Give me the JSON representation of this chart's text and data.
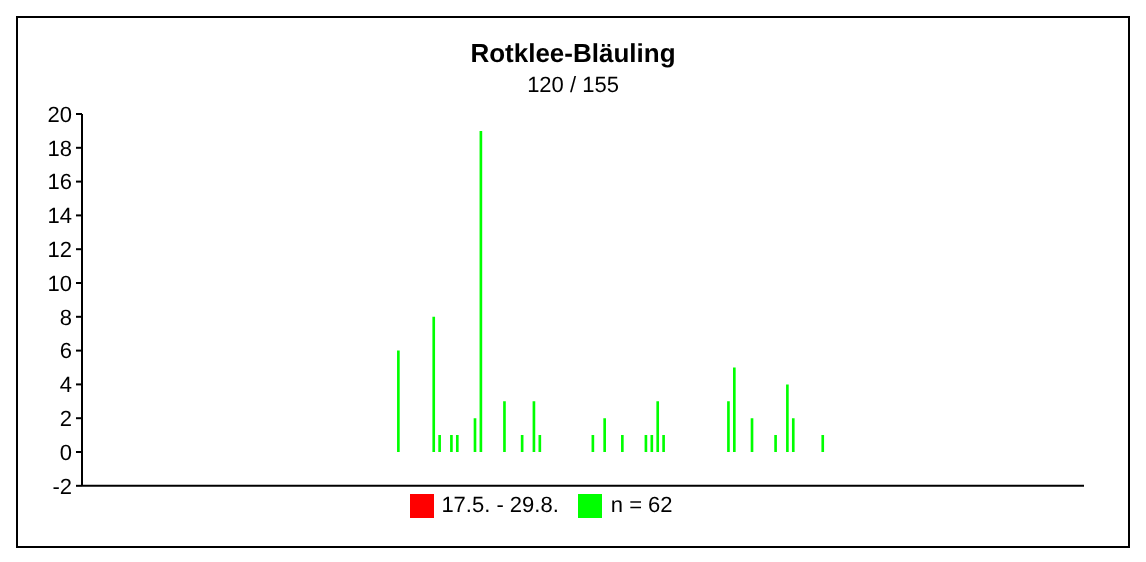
{
  "chart_data": {
    "type": "bar",
    "title": "Rotklee-Bläuling",
    "subtitle": "120 / 155",
    "categories": [
      null,
      null,
      null,
      null,
      null,
      null,
      null,
      null,
      null,
      null,
      null,
      null,
      null,
      null,
      null,
      null,
      null,
      null,
      null,
      null,
      null,
      null,
      null,
      null,
      null,
      null,
      null,
      null,
      null,
      null,
      null,
      null,
      null,
      null,
      null,
      null,
      null,
      null,
      null,
      null,
      null,
      null,
      null,
      null,
      null,
      null,
      null,
      null,
      null,
      null,
      null,
      null,
      null,
      null,
      null,
      null,
      null,
      null,
      null,
      null,
      null,
      null,
      null,
      null,
      null,
      null,
      null,
      null,
      null,
      null,
      null,
      null,
      null,
      null,
      null,
      null,
      null,
      null,
      null,
      null,
      null,
      null,
      null,
      null,
      null,
      null,
      null,
      null,
      null,
      null,
      null,
      null,
      null,
      null,
      null,
      null,
      null,
      null,
      null,
      null,
      null,
      null,
      null,
      null,
      null,
      null,
      null,
      null,
      null,
      null,
      null,
      null,
      null,
      null,
      null,
      null,
      null,
      null,
      null,
      null,
      null,
      null,
      null,
      null,
      null,
      null,
      null,
      null,
      null,
      null,
      null,
      null,
      null,
      null,
      null,
      null,
      null,
      null,
      null,
      null,
      null,
      null,
      null,
      null,
      null,
      null,
      null,
      null,
      null,
      null,
      null,
      null,
      null,
      null,
      null,
      null,
      null,
      null,
      null,
      null,
      null,
      null,
      null,
      null,
      null,
      null,
      null,
      null,
      null,
      null
    ],
    "series": [
      {
        "name": "17.5. - 29.8.",
        "color": "#ff0000",
        "values": [
          null,
          null,
          null,
          null,
          null,
          null,
          null,
          null,
          null,
          null,
          null,
          null,
          null,
          null,
          null,
          null,
          null,
          null,
          null,
          null,
          null,
          null,
          null,
          null,
          null,
          null,
          null,
          null,
          null,
          null,
          null,
          null,
          null,
          null,
          null,
          null,
          null,
          null,
          null,
          null,
          null,
          null,
          null,
          null,
          null,
          null,
          null,
          null,
          null,
          null,
          null,
          null,
          null,
          null,
          null,
          null,
          null,
          null,
          null,
          null,
          null,
          null,
          null,
          null,
          null,
          null,
          null,
          null,
          null,
          null,
          null,
          null,
          null,
          null,
          null,
          null,
          null,
          null,
          null,
          null,
          null,
          null,
          null,
          null,
          null,
          null,
          null,
          null,
          null,
          null,
          null,
          null,
          null,
          null,
          null,
          null,
          null,
          null,
          null,
          null,
          null,
          null,
          null,
          null,
          null,
          null,
          null,
          null,
          null,
          null,
          null,
          null,
          null,
          null,
          null,
          null,
          null,
          null,
          null,
          null,
          null,
          null,
          null,
          null,
          null,
          null,
          null,
          null,
          null,
          null,
          null,
          null,
          null,
          null,
          null,
          null,
          null,
          null,
          null,
          null,
          null,
          null,
          null,
          null,
          null,
          null,
          null,
          null,
          null,
          null,
          null,
          null,
          null,
          null,
          null,
          null,
          null,
          null,
          null,
          null,
          null,
          null,
          null,
          null,
          null,
          null,
          null,
          null,
          null,
          null
        ]
      },
      {
        "name": "n = 62",
        "color": "#00ff00",
        "values": [
          null,
          null,
          null,
          null,
          null,
          null,
          null,
          null,
          null,
          null,
          null,
          null,
          null,
          null,
          null,
          null,
          null,
          null,
          null,
          null,
          null,
          null,
          null,
          null,
          null,
          null,
          null,
          null,
          null,
          null,
          null,
          null,
          null,
          null,
          null,
          null,
          null,
          null,
          null,
          null,
          null,
          null,
          null,
          null,
          null,
          null,
          null,
          null,
          null,
          null,
          null,
          null,
          null,
          6,
          null,
          null,
          null,
          null,
          null,
          8,
          1,
          null,
          1,
          1,
          null,
          null,
          2,
          19,
          null,
          null,
          null,
          3,
          null,
          null,
          1,
          null,
          3,
          1,
          null,
          null,
          null,
          null,
          null,
          null,
          null,
          null,
          1,
          null,
          2,
          null,
          null,
          1,
          null,
          null,
          null,
          1,
          1,
          3,
          1,
          null,
          null,
          null,
          null,
          null,
          null,
          null,
          null,
          null,
          null,
          3,
          5,
          null,
          null,
          2,
          null,
          null,
          null,
          1,
          null,
          4,
          2,
          null,
          null,
          null,
          null,
          1,
          null,
          null,
          null,
          null,
          null,
          null,
          null,
          null,
          null,
          null,
          null,
          null,
          null,
          null,
          null,
          null,
          null,
          null,
          null,
          null,
          null,
          null,
          null,
          null,
          null,
          null,
          null,
          null,
          null,
          null,
          null,
          null,
          null,
          null,
          null,
          null,
          null,
          null,
          null,
          null,
          null,
          null,
          null,
          null
        ]
      }
    ],
    "ylim": [
      -2,
      20
    ],
    "yticks": [
      -2,
      0,
      2,
      4,
      6,
      8,
      10,
      12,
      14,
      16,
      18,
      20
    ],
    "tick_labels": "y",
    "legend": "bottom"
  }
}
